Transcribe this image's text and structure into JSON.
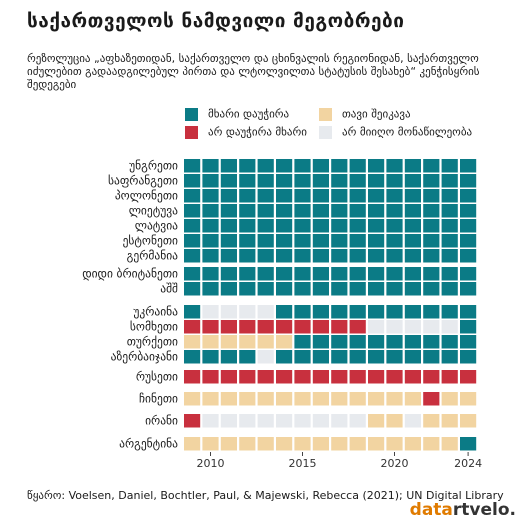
{
  "title": "საქართველოს ნამდვილი მეგობრები",
  "subtitle": "რეზოლუცია „აფხაზეთიდან, საქართველო და ცხინვალის რეგიონიდან, საქართველო იძულებით გადაადგილებულ პირთა და ლტოლვილთა სტატუსის შესახებ“ კენჭისყრის შედეგები",
  "colors": {
    "yes": "#0b7b86",
    "no": "#c8303e",
    "abstain": "#f2d4a1",
    "absent": "#e7eaee"
  },
  "legend": [
    {
      "key": "yes",
      "label": "მხარი დაუჭირა"
    },
    {
      "key": "abstain",
      "label": "თავი შეიკავა"
    },
    {
      "key": "no",
      "label": "არ დაუჭირა მხარი"
    },
    {
      "key": "absent",
      "label": "არ მიიღო მონაწილეობა"
    }
  ],
  "chart_data": {
    "type": "heatmap",
    "title": "საქართველოს ნამდვილი მეგობრები",
    "x": [
      2009,
      2010,
      2011,
      2012,
      2013,
      2014,
      2015,
      2016,
      2017,
      2018,
      2019,
      2020,
      2021,
      2022,
      2023,
      2024
    ],
    "x_ticks": [
      2010,
      2015,
      2020,
      2024
    ],
    "series": [
      {
        "name": "უნგრეთი",
        "values": [
          "yes",
          "yes",
          "yes",
          "yes",
          "yes",
          "yes",
          "yes",
          "yes",
          "yes",
          "yes",
          "yes",
          "yes",
          "yes",
          "yes",
          "yes",
          "yes"
        ]
      },
      {
        "name": "საფრანგეთი",
        "values": [
          "yes",
          "yes",
          "yes",
          "yes",
          "yes",
          "yes",
          "yes",
          "yes",
          "yes",
          "yes",
          "yes",
          "yes",
          "yes",
          "yes",
          "yes",
          "yes"
        ]
      },
      {
        "name": "პოლონეთი",
        "values": [
          "yes",
          "yes",
          "yes",
          "yes",
          "yes",
          "yes",
          "yes",
          "yes",
          "yes",
          "yes",
          "yes",
          "yes",
          "yes",
          "yes",
          "yes",
          "yes"
        ]
      },
      {
        "name": "ლიეტუვა",
        "values": [
          "yes",
          "yes",
          "yes",
          "yes",
          "yes",
          "yes",
          "yes",
          "yes",
          "yes",
          "yes",
          "yes",
          "yes",
          "yes",
          "yes",
          "yes",
          "yes"
        ]
      },
      {
        "name": "ლატვია",
        "values": [
          "yes",
          "yes",
          "yes",
          "yes",
          "yes",
          "yes",
          "yes",
          "yes",
          "yes",
          "yes",
          "yes",
          "yes",
          "yes",
          "yes",
          "yes",
          "yes"
        ]
      },
      {
        "name": "ესტონეთი",
        "values": [
          "yes",
          "yes",
          "yes",
          "yes",
          "yes",
          "yes",
          "yes",
          "yes",
          "yes",
          "yes",
          "yes",
          "yes",
          "yes",
          "yes",
          "yes",
          "yes"
        ]
      },
      {
        "name": "გერმანია",
        "values": [
          "yes",
          "yes",
          "yes",
          "yes",
          "yes",
          "yes",
          "yes",
          "yes",
          "yes",
          "yes",
          "yes",
          "yes",
          "yes",
          "yes",
          "yes",
          "yes"
        ]
      },
      {
        "name": "დიდი ბრიტანეთი",
        "values": [
          "yes",
          "yes",
          "yes",
          "yes",
          "yes",
          "yes",
          "yes",
          "yes",
          "yes",
          "yes",
          "yes",
          "yes",
          "yes",
          "yes",
          "yes",
          "yes"
        ]
      },
      {
        "name": "აშშ",
        "values": [
          "yes",
          "yes",
          "yes",
          "yes",
          "yes",
          "yes",
          "yes",
          "yes",
          "yes",
          "yes",
          "yes",
          "yes",
          "yes",
          "yes",
          "yes",
          "yes"
        ]
      },
      {
        "name": "უკრაინა",
        "values": [
          "yes",
          "absent",
          "absent",
          "absent",
          "absent",
          "yes",
          "yes",
          "yes",
          "yes",
          "yes",
          "yes",
          "yes",
          "yes",
          "yes",
          "yes",
          "yes"
        ]
      },
      {
        "name": "სომხეთი",
        "values": [
          "no",
          "no",
          "no",
          "no",
          "no",
          "no",
          "no",
          "no",
          "no",
          "no",
          "absent",
          "absent",
          "absent",
          "absent",
          "absent",
          "yes"
        ]
      },
      {
        "name": "თურქეთი",
        "values": [
          "abstain",
          "abstain",
          "abstain",
          "abstain",
          "abstain",
          "abstain",
          "yes",
          "yes",
          "yes",
          "yes",
          "yes",
          "yes",
          "yes",
          "yes",
          "yes",
          "yes"
        ]
      },
      {
        "name": "აზერბაიჯანი",
        "values": [
          "yes",
          "yes",
          "yes",
          "yes",
          "absent",
          "yes",
          "yes",
          "yes",
          "yes",
          "yes",
          "yes",
          "yes",
          "yes",
          "yes",
          "yes",
          "yes"
        ]
      },
      {
        "name": "რუსეთი",
        "values": [
          "no",
          "no",
          "no",
          "no",
          "no",
          "no",
          "no",
          "no",
          "no",
          "no",
          "no",
          "no",
          "no",
          "no",
          "no",
          "no"
        ]
      },
      {
        "name": "ჩინეთი",
        "values": [
          "abstain",
          "abstain",
          "abstain",
          "abstain",
          "abstain",
          "abstain",
          "abstain",
          "abstain",
          "abstain",
          "abstain",
          "abstain",
          "abstain",
          "abstain",
          "no",
          "abstain",
          "abstain"
        ]
      },
      {
        "name": "ირანი",
        "values": [
          "no",
          "absent",
          "absent",
          "absent",
          "absent",
          "absent",
          "absent",
          "absent",
          "absent",
          "absent",
          "abstain",
          "abstain",
          "absent",
          "abstain",
          "abstain",
          "abstain"
        ]
      },
      {
        "name": "არგენტინა",
        "values": [
          "abstain",
          "abstain",
          "abstain",
          "abstain",
          "abstain",
          "abstain",
          "abstain",
          "abstain",
          "abstain",
          "abstain",
          "abstain",
          "abstain",
          "abstain",
          "abstain",
          "abstain",
          "yes"
        ]
      }
    ],
    "groups": [
      [
        0,
        1,
        2,
        3,
        4,
        5,
        6
      ],
      [
        7,
        8
      ],
      [
        9,
        10,
        11,
        12
      ],
      [
        13
      ],
      [
        14
      ],
      [
        15
      ],
      [
        16
      ]
    ]
  },
  "source": "წყარო: Voelsen, Daniel, Bochtler, Paul, & Majewski, Rebecca (2021); UN Digital Library",
  "logo": {
    "part1": "data",
    "part2": "rtvelo."
  }
}
